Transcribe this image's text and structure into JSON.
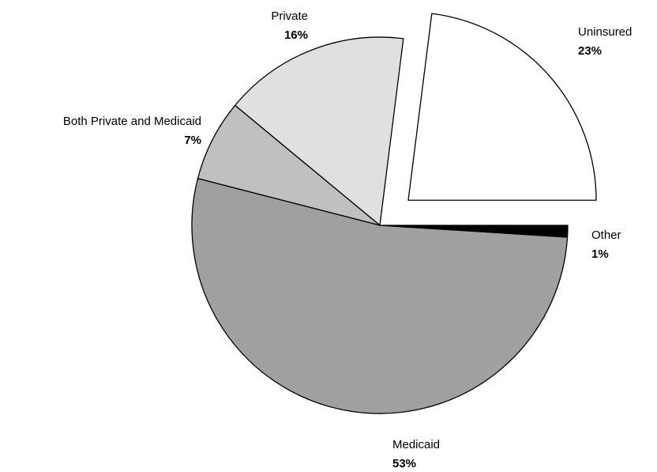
{
  "chart_data": {
    "type": "pie",
    "title": "",
    "start_angle_deg": 0,
    "direction": "counterclockwise",
    "exploded": [
      "Uninsured"
    ],
    "slices": [
      {
        "label": "Uninsured",
        "value_label": "23%",
        "value": 23,
        "color": "#ffffff"
      },
      {
        "label": "Private",
        "value_label": "16%",
        "value": 16,
        "color": "#e0e0e0"
      },
      {
        "label": "Both Private and Medicaid",
        "value_label": "7%",
        "value": 7,
        "color": "#c0c0c0"
      },
      {
        "label": "Medicaid",
        "value_label": "53%",
        "value": 53,
        "color": "#a0a0a0"
      },
      {
        "label": "Other",
        "value_label": "1%",
        "value": 1,
        "color": "#000000"
      }
    ]
  }
}
